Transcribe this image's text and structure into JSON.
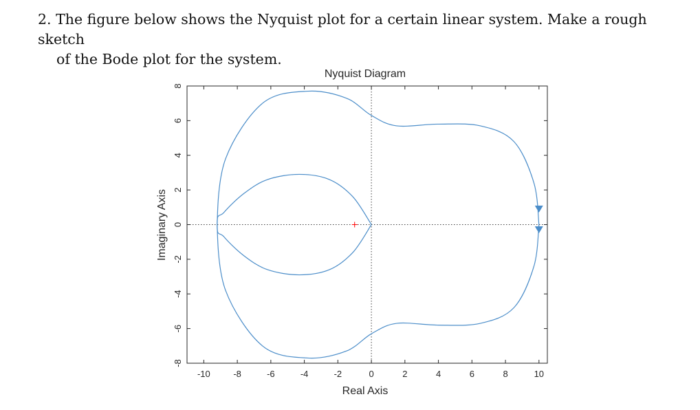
{
  "problem": {
    "number": "2.",
    "line1": "The figure below shows the Nyquist plot for a certain linear system. Make a rough sketch",
    "line2": "of the Bode plot for the system."
  },
  "chart_data": {
    "type": "line",
    "title": "Nyquist Diagram",
    "xlabel": "Real Axis",
    "ylabel": "Imaginary Axis",
    "xlim": [
      -11,
      10.5
    ],
    "ylim": [
      -8,
      8
    ],
    "xticks": [
      -10,
      -8,
      -6,
      -4,
      -2,
      0,
      2,
      4,
      6,
      8,
      10
    ],
    "yticks": [
      -8,
      -6,
      -4,
      -2,
      0,
      2,
      4,
      6,
      8
    ],
    "grid": false,
    "critical_point": [
      -1,
      0
    ],
    "series": [
      {
        "x": [
          10,
          9.7,
          8.5,
          6.5,
          4,
          1.5,
          0,
          -1.5,
          -3.8,
          -6.5,
          -8.7,
          -9.2,
          -8.8,
          -7.6,
          -6.2,
          -4.3,
          -2.5,
          -1.1,
          0
        ],
        "y": [
          0,
          2.4,
          4.8,
          5.7,
          5.8,
          5.7,
          6.3,
          7.3,
          7.7,
          7.0,
          3.8,
          0,
          -0.7,
          -1.8,
          -2.6,
          -2.9,
          -2.6,
          -1.6,
          0
        ],
        "color": "#4b8dc9"
      },
      {
        "x": [
          10,
          9.7,
          8.5,
          6.5,
          4,
          1.5,
          0,
          -1.5,
          -3.8,
          -6.5,
          -8.7,
          -9.2,
          -8.8,
          -7.6,
          -6.2,
          -4.3,
          -2.5,
          -1.1,
          0
        ],
        "y": [
          0,
          -2.4,
          -4.8,
          -5.7,
          -5.8,
          -5.7,
          -6.3,
          -7.3,
          -7.7,
          -7.0,
          -3.8,
          0,
          0.7,
          1.8,
          2.6,
          2.9,
          2.6,
          1.6,
          0
        ],
        "color": "#4b8dc9"
      }
    ],
    "arrows": [
      {
        "x": 10,
        "y": 0.9,
        "direction": "down"
      },
      {
        "x": 10,
        "y": -0.3,
        "direction": "down"
      }
    ],
    "colors": {
      "curve": "#4b8dc9",
      "axes": "#262626",
      "critical": "#ff0000",
      "zeroline": "#404040"
    }
  }
}
